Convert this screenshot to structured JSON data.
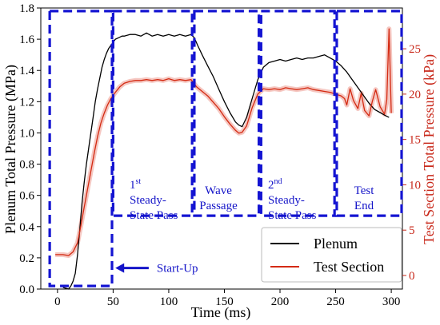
{
  "chart_data": {
    "type": "line",
    "xlabel": "Time (ms)",
    "ylabel_left": "Plenum Total Pressure (MPa)",
    "ylabel_right": "Test Section Total Pressure (kPa)",
    "xlim": [
      -15,
      310
    ],
    "ylim_left": [
      0.0,
      1.8
    ],
    "ylim_right": [
      -1.5,
      29.5
    ],
    "x_ticks": [
      0,
      50,
      100,
      150,
      200,
      250,
      300
    ],
    "y_ticks_left": [
      0.0,
      0.2,
      0.4,
      0.6,
      0.8,
      1.0,
      1.2,
      1.4,
      1.6,
      1.8
    ],
    "y_ticks_left_labels": [
      "0.0",
      "0.2",
      "0.4",
      "0.6",
      "0.8",
      "1.0",
      "1.2",
      "1.4",
      "1.6",
      "1.8"
    ],
    "y_ticks_right": [
      0,
      5,
      10,
      15,
      20,
      25
    ],
    "grid": false,
    "legend_position": "bottom-right",
    "colors": {
      "plenum": "#000000",
      "test_section": "#d42a12",
      "test_section_shadow": "#f3b9b2",
      "phase_box": "#1414d2",
      "phase_label": "#1414c8",
      "right_axis": "#c8281a"
    },
    "series": [
      {
        "name": "Plenum",
        "axis": "left",
        "x": [
          5,
          10,
          12,
          14,
          16,
          18,
          20,
          22,
          24,
          26,
          28,
          30,
          32,
          34,
          36,
          38,
          40,
          42,
          44,
          46,
          48,
          50,
          52,
          55,
          58,
          60,
          65,
          70,
          75,
          80,
          85,
          90,
          95,
          100,
          105,
          110,
          115,
          120,
          123,
          126,
          130,
          135,
          140,
          145,
          150,
          155,
          160,
          163,
          166,
          170,
          175,
          180,
          185,
          190,
          195,
          200,
          205,
          210,
          215,
          220,
          225,
          230,
          235,
          240,
          245,
          250,
          255,
          260,
          265,
          270,
          275,
          280,
          285,
          290,
          295,
          298
        ],
        "values": [
          0.01,
          0.0,
          0.02,
          0.05,
          0.1,
          0.22,
          0.38,
          0.55,
          0.68,
          0.8,
          0.9,
          1.0,
          1.1,
          1.2,
          1.28,
          1.35,
          1.42,
          1.47,
          1.51,
          1.54,
          1.56,
          1.58,
          1.6,
          1.61,
          1.62,
          1.62,
          1.63,
          1.63,
          1.62,
          1.64,
          1.62,
          1.63,
          1.62,
          1.63,
          1.62,
          1.63,
          1.62,
          1.63,
          1.61,
          1.56,
          1.5,
          1.43,
          1.36,
          1.28,
          1.2,
          1.13,
          1.07,
          1.05,
          1.04,
          1.1,
          1.22,
          1.34,
          1.42,
          1.45,
          1.46,
          1.47,
          1.46,
          1.47,
          1.48,
          1.47,
          1.48,
          1.48,
          1.49,
          1.5,
          1.48,
          1.46,
          1.43,
          1.39,
          1.34,
          1.29,
          1.24,
          1.19,
          1.15,
          1.13,
          1.11,
          1.1
        ]
      },
      {
        "name": "Test Section",
        "axis": "right",
        "x": [
          -2,
          5,
          10,
          14,
          18,
          21,
          24,
          27,
          30,
          33,
          36,
          39,
          42,
          45,
          48,
          52,
          56,
          60,
          65,
          70,
          75,
          80,
          85,
          90,
          95,
          100,
          105,
          110,
          115,
          120,
          122,
          125,
          130,
          135,
          140,
          145,
          150,
          155,
          160,
          163,
          166,
          170,
          175,
          180,
          185,
          190,
          195,
          200,
          205,
          210,
          215,
          220,
          225,
          230,
          235,
          240,
          245,
          250,
          255,
          258,
          260,
          263,
          266,
          270,
          273,
          276,
          280,
          283,
          286,
          290,
          294,
          296,
          298,
          300
        ],
        "values": [
          2.3,
          2.3,
          2.2,
          2.6,
          3.6,
          5.5,
          7.5,
          9.5,
          11.5,
          13.5,
          15.3,
          16.8,
          17.9,
          18.8,
          19.5,
          20.2,
          20.8,
          21.2,
          21.4,
          21.5,
          21.5,
          21.6,
          21.5,
          21.6,
          21.5,
          21.7,
          21.5,
          21.6,
          21.5,
          21.6,
          21.3,
          20.8,
          20.3,
          19.8,
          19.1,
          18.4,
          17.5,
          16.7,
          16.0,
          15.7,
          15.8,
          16.5,
          18.5,
          20.0,
          20.6,
          20.5,
          20.6,
          20.5,
          20.7,
          20.6,
          20.5,
          20.6,
          20.7,
          20.5,
          20.4,
          20.3,
          20.2,
          20.0,
          19.8,
          19.5,
          18.8,
          20.6,
          19.3,
          18.4,
          20.1,
          18.2,
          17.6,
          19.2,
          20.5,
          18.6,
          17.8,
          19.4,
          27.2,
          17.9
        ]
      }
    ],
    "phases": [
      {
        "label_lines": [],
        "x0": -7,
        "x1": 49,
        "y0": 0.02,
        "y1": 1.78
      },
      {
        "label_lines": [
          "1st",
          "Steady-",
          "State Pass"
        ],
        "x0": 50,
        "x1": 121,
        "y0": 0.47,
        "y1": 1.78
      },
      {
        "label_lines": [
          "Wave",
          "Passage"
        ],
        "x0": 123,
        "x1": 181,
        "y0": 0.47,
        "y1": 1.78
      },
      {
        "label_lines": [
          "2nd",
          "Steady-",
          "State Pass"
        ],
        "x0": 183,
        "x1": 249,
        "y0": 0.47,
        "y1": 1.78
      },
      {
        "label_lines": [
          "Test",
          "End"
        ],
        "x0": 251,
        "x1": 318,
        "y0": 0.47,
        "y1": 1.78
      }
    ],
    "phase_labels": {
      "steady1_sup": "st",
      "steady2_sup": "nd"
    },
    "annotation": {
      "text": "Start-Up",
      "arrow_from_x": 82,
      "arrow_to_x": 52,
      "y": 0.15
    }
  }
}
